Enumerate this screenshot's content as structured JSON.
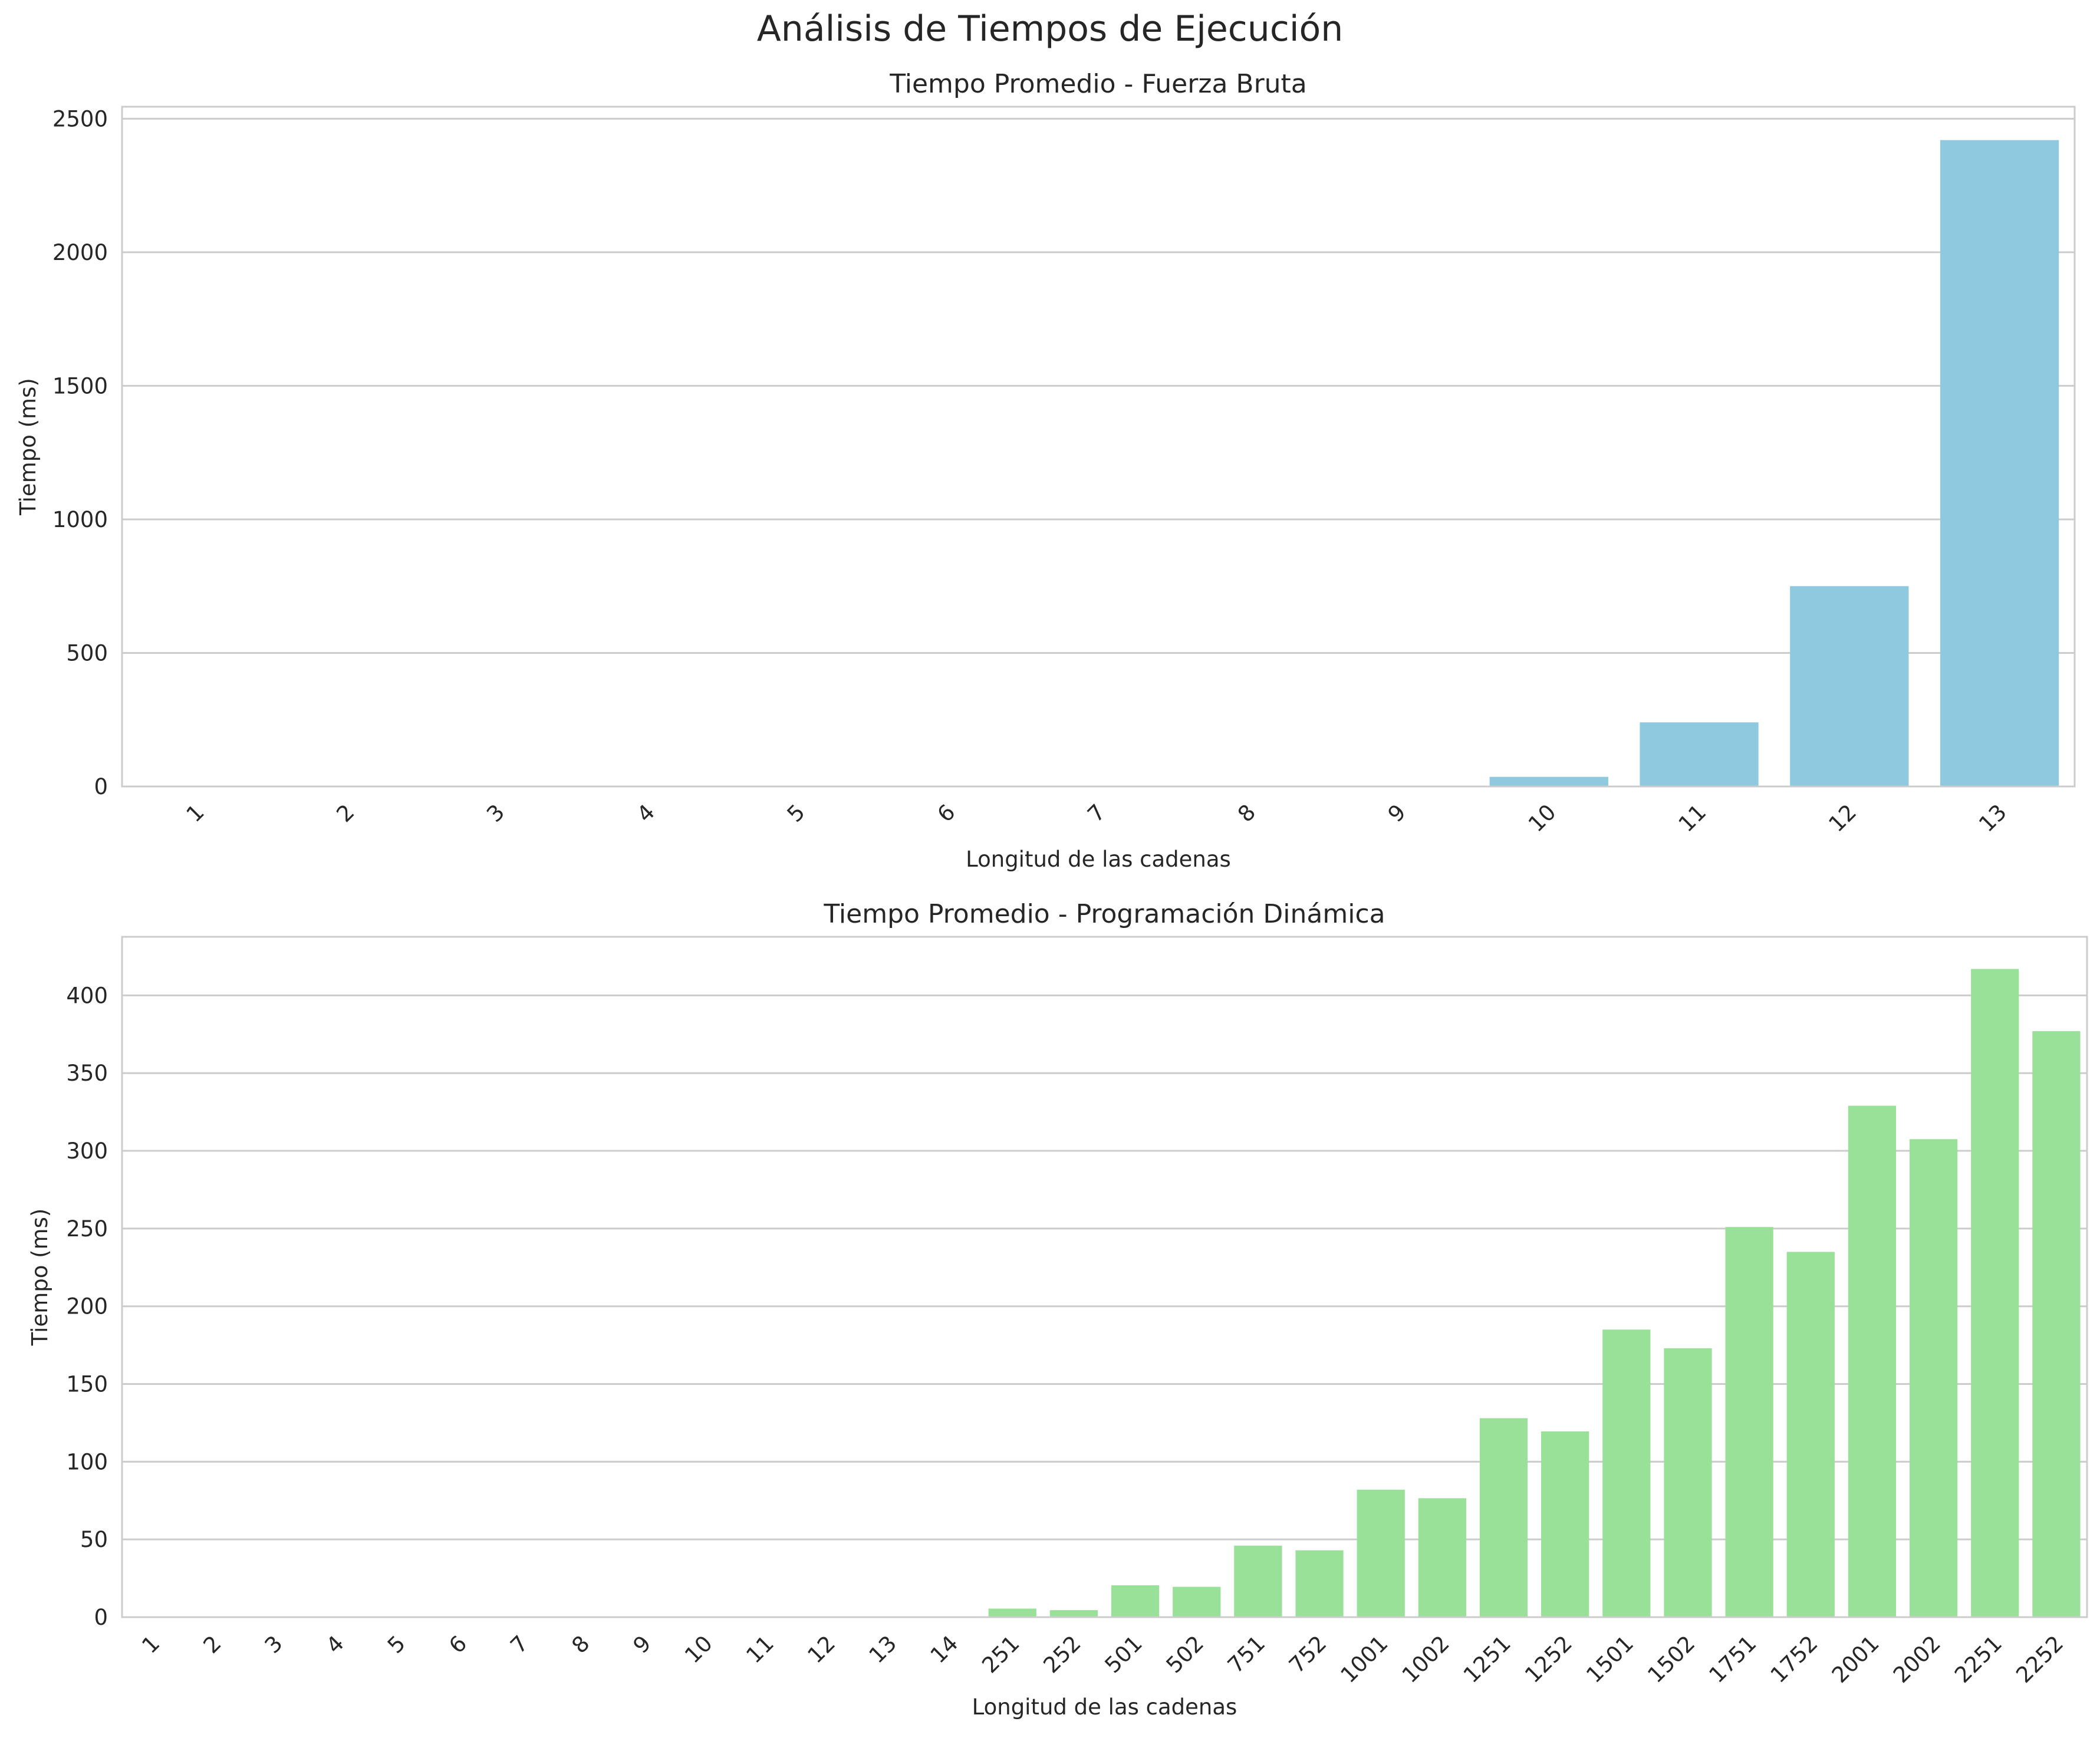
{
  "suptitle": "Análisis de Tiempos de Ejecución",
  "chart_data": [
    {
      "type": "bar",
      "title": "Tiempo Promedio - Fuerza Bruta",
      "xlabel": "Longitud de las cadenas",
      "ylabel": "Tiempo (ms)",
      "color": "#8fc9e0",
      "categories": [
        "1",
        "2",
        "3",
        "4",
        "5",
        "6",
        "7",
        "8",
        "9",
        "10",
        "11",
        "12",
        "13"
      ],
      "values": [
        0,
        0,
        0,
        0,
        0,
        0,
        0,
        0.5,
        3,
        36,
        240,
        750,
        2420
      ],
      "yticks": [
        0,
        500,
        1000,
        1500,
        2000,
        2500
      ],
      "ylim": [
        0,
        2545
      ],
      "grid": true
    },
    {
      "type": "bar",
      "title": "Tiempo Promedio - Programación Dinámica",
      "xlabel": "Longitud de las cadenas",
      "ylabel": "Tiempo (ms)",
      "color": "#99e099",
      "categories": [
        "1",
        "2",
        "3",
        "4",
        "5",
        "6",
        "7",
        "8",
        "9",
        "10",
        "11",
        "12",
        "13",
        "14",
        "251",
        "252",
        "501",
        "502",
        "751",
        "752",
        "1001",
        "1002",
        "1251",
        "1252",
        "1501",
        "1502",
        "1751",
        "1752",
        "2001",
        "2002",
        "2251",
        "2252"
      ],
      "values": [
        0,
        0,
        0,
        0,
        0,
        0,
        0,
        0,
        0,
        0,
        0,
        0,
        0,
        0,
        5.5,
        4.5,
        20.5,
        19.5,
        46,
        43,
        82,
        76.5,
        128,
        119.5,
        185,
        173,
        251,
        235,
        329,
        307.5,
        417,
        377
      ],
      "yticks": [
        0,
        50,
        100,
        150,
        200,
        250,
        300,
        350,
        400
      ],
      "ylim": [
        0,
        437.7
      ],
      "grid": true
    }
  ]
}
